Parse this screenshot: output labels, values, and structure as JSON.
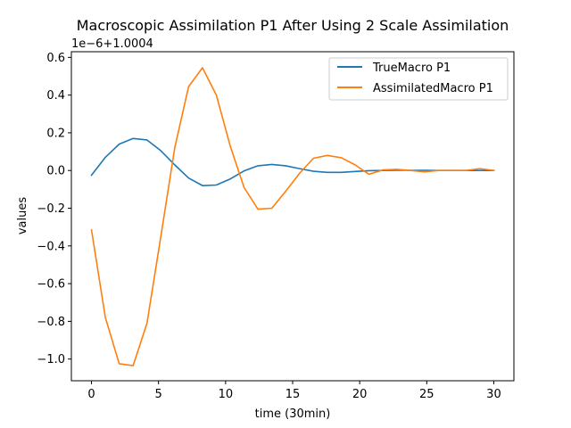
{
  "chart_data": {
    "type": "line",
    "title": "Macroscopic Assimilation P1 After Using 2 Scale Assimilation",
    "xlabel": "time (30min)",
    "ylabel": "values",
    "y_offset_label": "1e−6+1.0004",
    "xlim": [
      -1.5,
      31.5
    ],
    "ylim": [
      -1.115,
      0.63
    ],
    "x_ticks": [
      0,
      5,
      10,
      15,
      20,
      25,
      30
    ],
    "y_ticks": [
      -1.0,
      -0.8,
      -0.6,
      -0.4,
      -0.2,
      0.0,
      0.2,
      0.4,
      0.6
    ],
    "x_tick_labels": [
      "0",
      "5",
      "10",
      "15",
      "20",
      "25",
      "30"
    ],
    "y_tick_labels": [
      "−1.0",
      "−0.8",
      "−0.6",
      "−0.4",
      "−0.2",
      "0.0",
      "0.2",
      "0.4",
      "0.6"
    ],
    "grid": false,
    "legend_position": "upper right",
    "x": [
      0,
      1.034,
      2.069,
      3.103,
      4.138,
      5.172,
      6.207,
      7.241,
      8.276,
      9.31,
      10.345,
      11.379,
      12.414,
      13.448,
      14.483,
      15.517,
      16.552,
      17.586,
      18.621,
      19.655,
      20.69,
      21.724,
      22.759,
      23.793,
      24.828,
      25.862,
      26.897,
      27.931,
      28.966,
      30
    ],
    "series": [
      {
        "name": "TrueMacro P1",
        "color": "#1f77b4",
        "values": [
          -0.025,
          0.07,
          0.14,
          0.17,
          0.162,
          0.105,
          0.03,
          -0.04,
          -0.08,
          -0.077,
          -0.045,
          -0.002,
          0.025,
          0.032,
          0.025,
          0.01,
          -0.004,
          -0.01,
          -0.01,
          -0.005,
          -0.001,
          0.0,
          0.001,
          0.001,
          0.001,
          0.0,
          0.0,
          0.0,
          0.0,
          0.0
        ]
      },
      {
        "name": "AssimilatedMacro P1",
        "color": "#ff7f0e",
        "values": [
          -0.315,
          -0.78,
          -1.025,
          -1.035,
          -0.81,
          -0.35,
          0.12,
          0.445,
          0.545,
          0.4,
          0.13,
          -0.09,
          -0.205,
          -0.2,
          -0.11,
          -0.015,
          0.065,
          0.08,
          0.068,
          0.03,
          -0.02,
          0.003,
          0.006,
          0.0,
          -0.007,
          0.0,
          0.0,
          0.0,
          0.01,
          0.0
        ]
      }
    ]
  }
}
